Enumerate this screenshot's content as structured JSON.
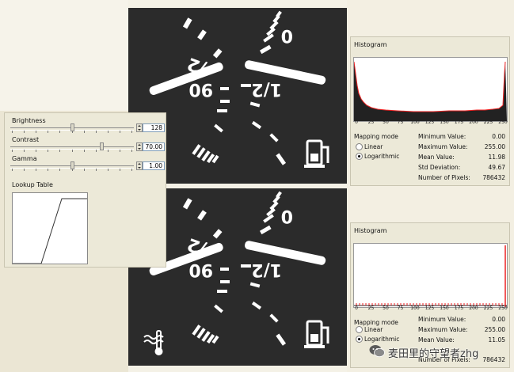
{
  "controls": {
    "brightness": {
      "label": "Brightness",
      "value": "128",
      "level": 0.5
    },
    "contrast": {
      "label": "Contrast",
      "value": "70.00",
      "level": 0.75
    },
    "gamma": {
      "label": "Gamma",
      "value": "1.00",
      "level": 0.5
    },
    "lookup_table_label": "Lookup Table"
  },
  "histograms": [
    {
      "title": "Histogram",
      "axis_ticks": [
        "0",
        "25",
        "50",
        "75",
        "100",
        "125",
        "150",
        "175",
        "200",
        "225",
        "250"
      ],
      "mapping_mode_label": "Mapping mode",
      "mode_linear": "Linear",
      "mode_log": "Logarithmic",
      "selected_mode": "Logarithmic",
      "stats": [
        {
          "label": "Minimum Value:",
          "value": "0.00"
        },
        {
          "label": "Maximum Value:",
          "value": "255.00"
        },
        {
          "label": "Mean Value:",
          "value": "11.98"
        },
        {
          "label": "Std Deviation:",
          "value": "49.67"
        },
        {
          "label": "Number of Pixels:",
          "value": "786432"
        }
      ]
    },
    {
      "title": "Histogram",
      "axis_ticks": [
        "0",
        "25",
        "50",
        "75",
        "100",
        "125",
        "150",
        "175",
        "200",
        "225",
        "250"
      ],
      "mapping_mode_label": "Mapping mode",
      "mode_linear": "Linear",
      "mode_log": "Logarithmic",
      "selected_mode": "Logarithmic",
      "stats": [
        {
          "label": "Minimum Value:",
          "value": "0.00"
        },
        {
          "label": "Maximum Value:",
          "value": "255.00"
        },
        {
          "label": "Mean Value:",
          "value": "11.05"
        },
        {
          "label": "Std Deviation:",
          "value": "",
          "hidden": true
        },
        {
          "label": "Number of Pixels:",
          "value": "786432"
        }
      ]
    }
  ],
  "gauge": {
    "label_90": "90",
    "label_half": "1/2",
    "label_0": "0",
    "label_slash_half": "/2"
  },
  "watermark": {
    "text": "麦田里的守望者zhg"
  }
}
